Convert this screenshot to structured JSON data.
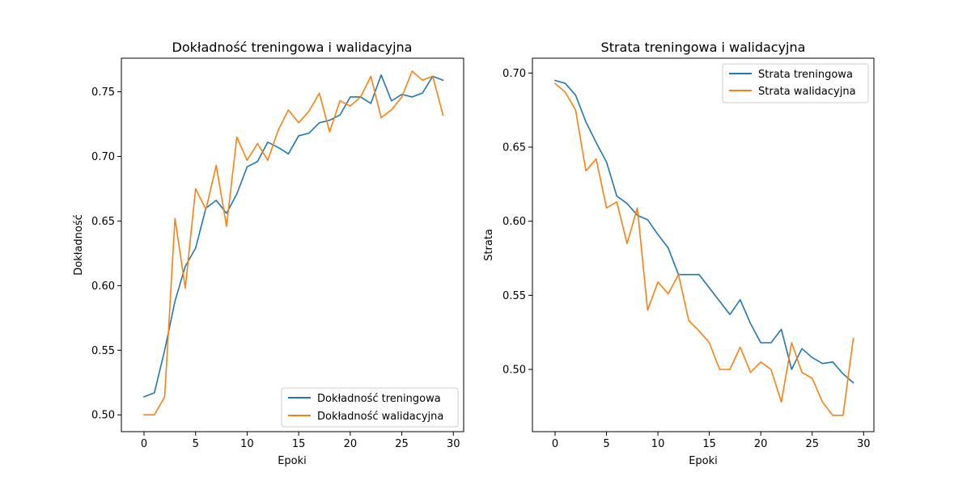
{
  "chart_data": [
    {
      "type": "line",
      "title": "Dokładność treningowa i walidacyjna",
      "xlabel": "Epoki",
      "ylabel": "Dokładność",
      "xlim": [
        -2.2,
        31
      ],
      "ylim": [
        0.487,
        0.776
      ],
      "xticks": [
        0,
        5,
        10,
        15,
        20,
        25,
        30
      ],
      "yticks": [
        0.5,
        0.55,
        0.6,
        0.65,
        0.7,
        0.75
      ],
      "ytick_labels": [
        "0.50",
        "0.55",
        "0.60",
        "0.65",
        "0.70",
        "0.75"
      ],
      "legend_position": "lower-right",
      "x": [
        0,
        1,
        2,
        3,
        4,
        5,
        6,
        7,
        8,
        9,
        10,
        11,
        12,
        13,
        14,
        15,
        16,
        17,
        18,
        19,
        20,
        21,
        22,
        23,
        24,
        25,
        26,
        27,
        28,
        29
      ],
      "series": [
        {
          "name": "Dokładność treningowa",
          "color": "#1f77b4",
          "values": [
            0.514,
            0.517,
            0.55,
            0.588,
            0.615,
            0.629,
            0.66,
            0.666,
            0.656,
            0.671,
            0.692,
            0.696,
            0.711,
            0.707,
            0.702,
            0.716,
            0.718,
            0.726,
            0.728,
            0.732,
            0.746,
            0.746,
            0.741,
            0.763,
            0.743,
            0.748,
            0.746,
            0.749,
            0.762,
            0.759
          ]
        },
        {
          "name": "Dokładność walidacyjna",
          "color": "#ff7f0e",
          "values": [
            0.5,
            0.5,
            0.514,
            0.652,
            0.598,
            0.675,
            0.659,
            0.693,
            0.646,
            0.715,
            0.697,
            0.71,
            0.697,
            0.72,
            0.736,
            0.726,
            0.735,
            0.749,
            0.719,
            0.743,
            0.739,
            0.746,
            0.762,
            0.73,
            0.736,
            0.746,
            0.766,
            0.759,
            0.762,
            0.732
          ]
        }
      ]
    },
    {
      "type": "line",
      "title": "Strata treningowa i walidacyjna",
      "xlabel": "Epoki",
      "ylabel": "Strata",
      "xlim": [
        -2.2,
        31
      ],
      "ylim": [
        0.458,
        0.71
      ],
      "xticks": [
        0,
        5,
        10,
        15,
        20,
        25,
        30
      ],
      "yticks": [
        0.5,
        0.55,
        0.6,
        0.65,
        0.7
      ],
      "ytick_labels": [
        "0.50",
        "0.55",
        "0.60",
        "0.65",
        "0.70"
      ],
      "legend_position": "upper-right",
      "x": [
        0,
        1,
        2,
        3,
        4,
        5,
        6,
        7,
        8,
        9,
        10,
        11,
        12,
        13,
        14,
        15,
        16,
        17,
        18,
        19,
        20,
        21,
        22,
        23,
        24,
        25,
        26,
        27,
        28,
        29
      ],
      "series": [
        {
          "name": "Strata treningowa",
          "color": "#1f77b4",
          "values": [
            0.695,
            0.693,
            0.685,
            0.667,
            0.653,
            0.64,
            0.617,
            0.612,
            0.604,
            0.601,
            0.591,
            0.582,
            0.564,
            0.564,
            0.564,
            0.555,
            0.546,
            0.537,
            0.547,
            0.531,
            0.518,
            0.518,
            0.527,
            0.5,
            0.514,
            0.508,
            0.504,
            0.505,
            0.497,
            0.491
          ]
        },
        {
          "name": "Strata walidacyjna",
          "color": "#ff7f0e",
          "values": [
            0.693,
            0.687,
            0.675,
            0.634,
            0.642,
            0.609,
            0.613,
            0.585,
            0.609,
            0.54,
            0.559,
            0.551,
            0.564,
            0.533,
            0.526,
            0.518,
            0.5,
            0.5,
            0.515,
            0.498,
            0.505,
            0.5,
            0.478,
            0.518,
            0.498,
            0.494,
            0.478,
            0.469,
            0.469,
            0.521
          ]
        }
      ]
    }
  ]
}
